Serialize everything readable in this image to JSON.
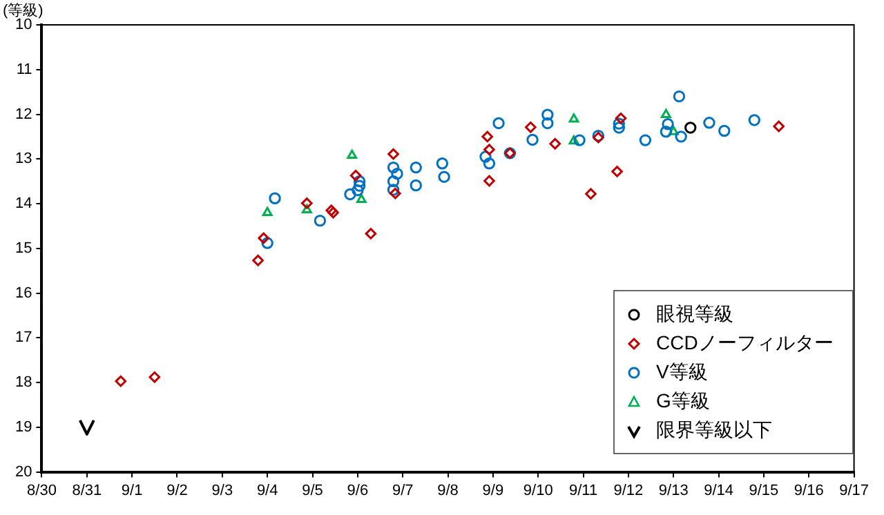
{
  "chart_data": {
    "type": "scatter",
    "ylabel": "(等級)",
    "xlim": [
      "--08-30",
      "--09-17"
    ],
    "ylim": [
      20,
      10
    ],
    "xticks": [
      {
        "value": "--08-30",
        "label": "8/30"
      },
      {
        "value": "--08-31",
        "label": "8/31"
      },
      {
        "value": "--09-01",
        "label": "9/1"
      },
      {
        "value": "--09-02",
        "label": "9/2"
      },
      {
        "value": "--09-03",
        "label": "9/3"
      },
      {
        "value": "--09-04",
        "label": "9/4"
      },
      {
        "value": "--09-05",
        "label": "9/5"
      },
      {
        "value": "--09-06",
        "label": "9/6"
      },
      {
        "value": "--09-07",
        "label": "9/7"
      },
      {
        "value": "--09-08",
        "label": "9/8"
      },
      {
        "value": "--09-09",
        "label": "9/9"
      },
      {
        "value": "--09-10",
        "label": "9/10"
      },
      {
        "value": "--09-11",
        "label": "9/11"
      },
      {
        "value": "--09-12",
        "label": "9/12"
      },
      {
        "value": "--09-13",
        "label": "9/13"
      },
      {
        "value": "--09-14",
        "label": "9/14"
      },
      {
        "value": "--09-15",
        "label": "9/15"
      },
      {
        "value": "--09-16",
        "label": "9/16"
      },
      {
        "value": "--09-17",
        "label": "9/17"
      }
    ],
    "yticks": [
      10,
      11,
      12,
      13,
      14,
      15,
      16,
      17,
      18,
      19,
      20
    ],
    "grid": false,
    "legend": "bottom right",
    "series": [
      {
        "name": "眼視等級",
        "color": "#000000",
        "marker": "circle",
        "x": [
          "--09-13T09:00"
        ],
        "values": [
          12.3
        ]
      },
      {
        "name": "CCDノーフィルター",
        "color": "#c00000",
        "marker": "diamond",
        "x": [
          "--08-31T18:00",
          "--09-01T12:00",
          "--09-03T19:00",
          "--09-03T22:00",
          "--09-04T21:00",
          "--09-05T10:00",
          "--09-05T11:00",
          "--09-06T07:00",
          "--09-05T23:00",
          "--09-06T19:00",
          "--09-06T20:00",
          "--09-08T21:00",
          "--09-08T22:00",
          "--09-08T22:00",
          "--09-09T09:00",
          "--09-09T20:00",
          "--09-10T09:00",
          "--09-11T08:00",
          "--09-11T04:00",
          "--09-11T20:00",
          "--09-11T18:00",
          "--09-15T08:00"
        ],
        "values": [
          17.97,
          17.88,
          15.27,
          14.77,
          13.99,
          14.15,
          14.2,
          14.67,
          13.37,
          12.89,
          13.77,
          12.5,
          12.79,
          13.49,
          12.87,
          12.29,
          12.66,
          12.52,
          13.78,
          12.09,
          13.28,
          12.27
        ]
      },
      {
        "name": "V等級",
        "color": "#0070c0",
        "marker": "circle",
        "x": [
          "--09-04T00:00",
          "--09-04T04:00",
          "--09-05T04:00",
          "--09-05T20:00",
          "--09-06T00:00",
          "--09-06T01:00",
          "--09-06T01:00",
          "--09-06T19:00",
          "--09-06T21:00",
          "--09-06T19:00",
          "--09-06T19:00",
          "--09-07T07:00",
          "--09-07T07:00",
          "--09-07T21:00",
          "--09-07T22:00",
          "--09-08T20:00",
          "--09-08T22:00",
          "--09-09T03:00",
          "--09-09T09:00",
          "--09-09T21:00",
          "--09-10T05:00",
          "--09-10T05:00",
          "--09-10T22:00",
          "--09-11T08:00",
          "--09-11T19:00",
          "--09-11T19:00",
          "--09-12T09:00",
          "--09-12T20:00",
          "--09-12T21:00",
          "--09-13T03:00",
          "--09-13T04:00",
          "--09-13T19:00",
          "--09-14T03:00",
          "--09-14T19:00"
        ],
        "values": [
          14.88,
          13.88,
          14.38,
          13.79,
          13.7,
          13.5,
          13.6,
          13.19,
          13.33,
          13.5,
          13.69,
          13.19,
          13.59,
          13.1,
          13.4,
          12.95,
          13.1,
          12.2,
          12.87,
          12.57,
          12.01,
          12.2,
          12.58,
          12.48,
          12.3,
          12.21,
          12.58,
          12.39,
          12.22,
          11.6,
          12.5,
          12.19,
          12.37,
          12.13
        ]
      },
      {
        "name": "G等級",
        "color": "#00b050",
        "marker": "triangle",
        "x": [
          "--09-04T00:00",
          "--09-04T21:00",
          "--09-05T21:00",
          "--09-06T02:00",
          "--09-10T19:00",
          "--09-10T19:00",
          "--09-12T20:00",
          "--09-13T00:00"
        ],
        "values": [
          14.2,
          14.14,
          12.92,
          13.91,
          12.11,
          12.6,
          12.01,
          12.39
        ]
      },
      {
        "name": "限界等級以下",
        "color": "#000000",
        "x": [
          "--08-31T00:00"
        ],
        "values": [
          19.0
        ]
      }
    ]
  }
}
